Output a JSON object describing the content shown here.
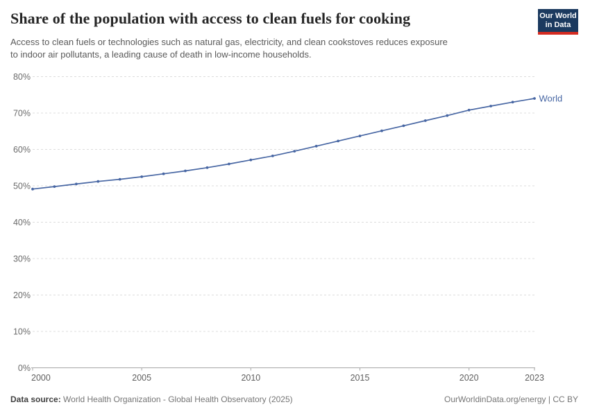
{
  "header": {
    "title": "Share of the population with access to clean fuels for cooking",
    "subtitle_lines": [
      "Access to clean fuels or technologies such as natural gas, electricity, and clean cookstoves reduces exposure",
      "to indoor air pollutants, a leading cause of death in low-income households."
    ]
  },
  "logo": {
    "line1": "Our World",
    "line2": "in Data",
    "bg_color": "#1b3a5f",
    "accent_color": "#d42b21"
  },
  "chart_data": {
    "type": "line",
    "title": "Share of the population with access to clean fuels for cooking",
    "xlabel": "",
    "ylabel": "",
    "xlim": [
      2000,
      2023
    ],
    "ylim": [
      0,
      80
    ],
    "yticks": [
      0,
      10,
      20,
      30,
      40,
      50,
      60,
      70,
      80
    ],
    "ytick_suffix": "%",
    "xticks": [
      2000,
      2005,
      2010,
      2015,
      2020,
      2023
    ],
    "grid": "horizontal-dashed",
    "legend_position": "end-of-line",
    "series": [
      {
        "name": "World",
        "color": "#4766a3",
        "x": [
          2000,
          2001,
          2002,
          2003,
          2004,
          2005,
          2006,
          2007,
          2008,
          2009,
          2010,
          2011,
          2012,
          2013,
          2014,
          2015,
          2016,
          2017,
          2018,
          2019,
          2020,
          2021,
          2022,
          2023
        ],
        "y": [
          49.1,
          49.8,
          50.5,
          51.2,
          51.8,
          52.5,
          53.3,
          54.1,
          55.0,
          56.0,
          57.1,
          58.2,
          59.5,
          60.9,
          62.3,
          63.7,
          65.1,
          66.5,
          67.9,
          69.3,
          70.8,
          71.9,
          73.0,
          74.0
        ]
      }
    ]
  },
  "footer": {
    "data_source_label": "Data source:",
    "data_source_text": " World Health Organization - Global Health Observatory (2025)",
    "right_text": "OurWorldinData.org/energy | CC BY"
  },
  "colors": {
    "line": "#4766a3",
    "gridline": "#dcdcdc",
    "axis": "#a6a6a6",
    "ytick_label": "#6b6b6b",
    "xtick_label": "#5e5e5e"
  }
}
